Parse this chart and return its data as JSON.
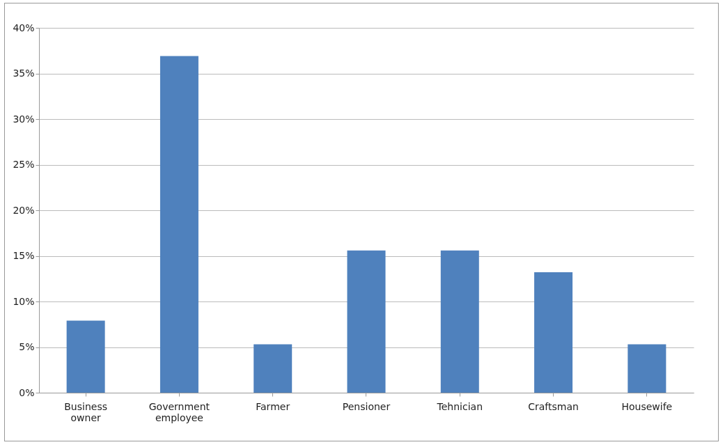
{
  "chart_data": {
    "type": "bar",
    "categories": [
      "Business owner",
      "Government employee",
      "Farmer",
      "Pensioner",
      "Tehnician",
      "Craftsman",
      "Housewife"
    ],
    "values": [
      7.9,
      36.9,
      5.3,
      15.6,
      15.6,
      13.2,
      5.3
    ],
    "color": "#4f81bd",
    "ylim": [
      0,
      40
    ],
    "yticks": [
      {
        "value": 0,
        "label": "0%"
      },
      {
        "value": 5,
        "label": "5%"
      },
      {
        "value": 10,
        "label": "10%"
      },
      {
        "value": 15,
        "label": "15%"
      },
      {
        "value": 20,
        "label": "20%"
      },
      {
        "value": 25,
        "label": "25%"
      },
      {
        "value": 30,
        "label": "30%"
      },
      {
        "value": 35,
        "label": "35%"
      },
      {
        "value": 40,
        "label": "40%"
      }
    ],
    "grid": "y"
  }
}
